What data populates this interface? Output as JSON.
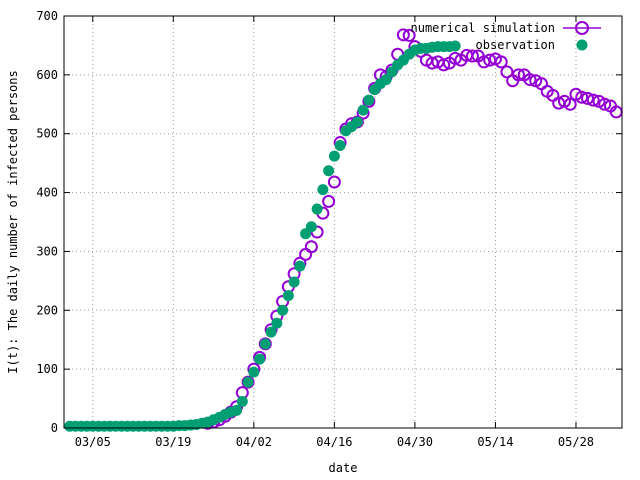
{
  "chart_data": {
    "type": "scatter",
    "xlabel": "date",
    "ylabel": "I(t): The daily number of infected persons",
    "ylim": [
      0,
      700
    ],
    "xlim": [
      "2020-02-29",
      "2020-06-05"
    ],
    "x_ticks": [
      "03/05",
      "03/19",
      "04/02",
      "04/16",
      "04/30",
      "05/14",
      "05/28"
    ],
    "y_ticks": [
      0,
      100,
      200,
      300,
      400,
      500,
      600,
      700
    ],
    "grid": true,
    "legend_position": "top-right",
    "series": [
      {
        "name": "numerical simulation",
        "marker": "open-circle",
        "color": "#9400d3",
        "points": [
          [
            "2020-03-25",
            8
          ],
          [
            "2020-03-26",
            10
          ],
          [
            "2020-03-27",
            14
          ],
          [
            "2020-03-28",
            20
          ],
          [
            "2020-03-29",
            27
          ],
          [
            "2020-03-30",
            36
          ],
          [
            "2020-03-31",
            60
          ],
          [
            "2020-04-01",
            78
          ],
          [
            "2020-04-02",
            100
          ],
          [
            "2020-04-03",
            120
          ],
          [
            "2020-04-04",
            143
          ],
          [
            "2020-04-05",
            167
          ],
          [
            "2020-04-06",
            190
          ],
          [
            "2020-04-07",
            215
          ],
          [
            "2020-04-08",
            240
          ],
          [
            "2020-04-09",
            262
          ],
          [
            "2020-04-10",
            280
          ],
          [
            "2020-04-11",
            295
          ],
          [
            "2020-04-12",
            308
          ],
          [
            "2020-04-13",
            333
          ],
          [
            "2020-04-14",
            365
          ],
          [
            "2020-04-15",
            385
          ],
          [
            "2020-04-16",
            418
          ],
          [
            "2020-04-17",
            485
          ],
          [
            "2020-04-18",
            508
          ],
          [
            "2020-04-19",
            517
          ],
          [
            "2020-04-20",
            520
          ],
          [
            "2020-04-21",
            535
          ],
          [
            "2020-04-22",
            555
          ],
          [
            "2020-04-23",
            577
          ],
          [
            "2020-04-24",
            600
          ],
          [
            "2020-04-25",
            597
          ],
          [
            "2020-04-26",
            608
          ],
          [
            "2020-04-27",
            635
          ],
          [
            "2020-04-28",
            668
          ],
          [
            "2020-04-29",
            667
          ],
          [
            "2020-04-30",
            648
          ],
          [
            "2020-05-01",
            640
          ],
          [
            "2020-05-02",
            625
          ],
          [
            "2020-05-03",
            620
          ],
          [
            "2020-05-04",
            622
          ],
          [
            "2020-05-05",
            617
          ],
          [
            "2020-05-06",
            620
          ],
          [
            "2020-05-07",
            628
          ],
          [
            "2020-05-08",
            625
          ],
          [
            "2020-05-09",
            633
          ],
          [
            "2020-05-10",
            632
          ],
          [
            "2020-05-11",
            632
          ],
          [
            "2020-05-12",
            622
          ],
          [
            "2020-05-13",
            625
          ],
          [
            "2020-05-14",
            627
          ],
          [
            "2020-05-15",
            622
          ],
          [
            "2020-05-16",
            605
          ],
          [
            "2020-05-17",
            590
          ],
          [
            "2020-05-18",
            600
          ],
          [
            "2020-05-19",
            600
          ],
          [
            "2020-05-20",
            592
          ],
          [
            "2020-05-21",
            590
          ],
          [
            "2020-05-22",
            585
          ],
          [
            "2020-05-23",
            572
          ],
          [
            "2020-05-24",
            565
          ],
          [
            "2020-05-25",
            552
          ],
          [
            "2020-05-26",
            555
          ],
          [
            "2020-05-27",
            550
          ],
          [
            "2020-05-28",
            567
          ],
          [
            "2020-05-29",
            562
          ],
          [
            "2020-05-30",
            560
          ],
          [
            "2020-05-31",
            557
          ],
          [
            "2020-06-01",
            555
          ],
          [
            "2020-06-02",
            550
          ],
          [
            "2020-06-03",
            547
          ],
          [
            "2020-06-04",
            537
          ]
        ]
      },
      {
        "name": "observation",
        "marker": "filled-circle",
        "color": "#009e73",
        "points": [
          [
            "2020-03-01",
            3
          ],
          [
            "2020-03-02",
            3
          ],
          [
            "2020-03-03",
            3
          ],
          [
            "2020-03-04",
            3
          ],
          [
            "2020-03-05",
            3
          ],
          [
            "2020-03-06",
            3
          ],
          [
            "2020-03-07",
            3
          ],
          [
            "2020-03-08",
            3
          ],
          [
            "2020-03-09",
            3
          ],
          [
            "2020-03-10",
            3
          ],
          [
            "2020-03-11",
            3
          ],
          [
            "2020-03-12",
            3
          ],
          [
            "2020-03-13",
            3
          ],
          [
            "2020-03-14",
            3
          ],
          [
            "2020-03-15",
            3
          ],
          [
            "2020-03-16",
            3
          ],
          [
            "2020-03-17",
            3
          ],
          [
            "2020-03-18",
            3
          ],
          [
            "2020-03-19",
            3
          ],
          [
            "2020-03-20",
            4
          ],
          [
            "2020-03-21",
            4
          ],
          [
            "2020-03-22",
            5
          ],
          [
            "2020-03-23",
            6
          ],
          [
            "2020-03-24",
            8
          ],
          [
            "2020-03-25",
            10
          ],
          [
            "2020-03-26",
            14
          ],
          [
            "2020-03-27",
            18
          ],
          [
            "2020-03-28",
            23
          ],
          [
            "2020-03-29",
            27
          ],
          [
            "2020-03-30",
            30
          ],
          [
            "2020-03-31",
            45
          ],
          [
            "2020-04-01",
            78
          ],
          [
            "2020-04-02",
            95
          ],
          [
            "2020-04-03",
            117
          ],
          [
            "2020-04-04",
            143
          ],
          [
            "2020-04-05",
            163
          ],
          [
            "2020-04-06",
            178
          ],
          [
            "2020-04-07",
            200
          ],
          [
            "2020-04-08",
            225
          ],
          [
            "2020-04-09",
            248
          ],
          [
            "2020-04-10",
            275
          ],
          [
            "2020-04-11",
            330
          ],
          [
            "2020-04-12",
            342
          ],
          [
            "2020-04-13",
            372
          ],
          [
            "2020-04-14",
            405
          ],
          [
            "2020-04-15",
            437
          ],
          [
            "2020-04-16",
            462
          ],
          [
            "2020-04-17",
            480
          ],
          [
            "2020-04-18",
            505
          ],
          [
            "2020-04-19",
            512
          ],
          [
            "2020-04-20",
            520
          ],
          [
            "2020-04-21",
            540
          ],
          [
            "2020-04-22",
            557
          ],
          [
            "2020-04-23",
            575
          ],
          [
            "2020-04-24",
            585
          ],
          [
            "2020-04-25",
            592
          ],
          [
            "2020-04-26",
            605
          ],
          [
            "2020-04-27",
            617
          ],
          [
            "2020-04-28",
            625
          ],
          [
            "2020-04-29",
            635
          ],
          [
            "2020-04-30",
            642
          ],
          [
            "2020-05-01",
            645
          ],
          [
            "2020-05-02",
            645
          ],
          [
            "2020-05-03",
            647
          ],
          [
            "2020-05-04",
            648
          ],
          [
            "2020-05-05",
            648
          ],
          [
            "2020-05-06",
            648
          ],
          [
            "2020-05-07",
            649
          ]
        ]
      }
    ]
  }
}
